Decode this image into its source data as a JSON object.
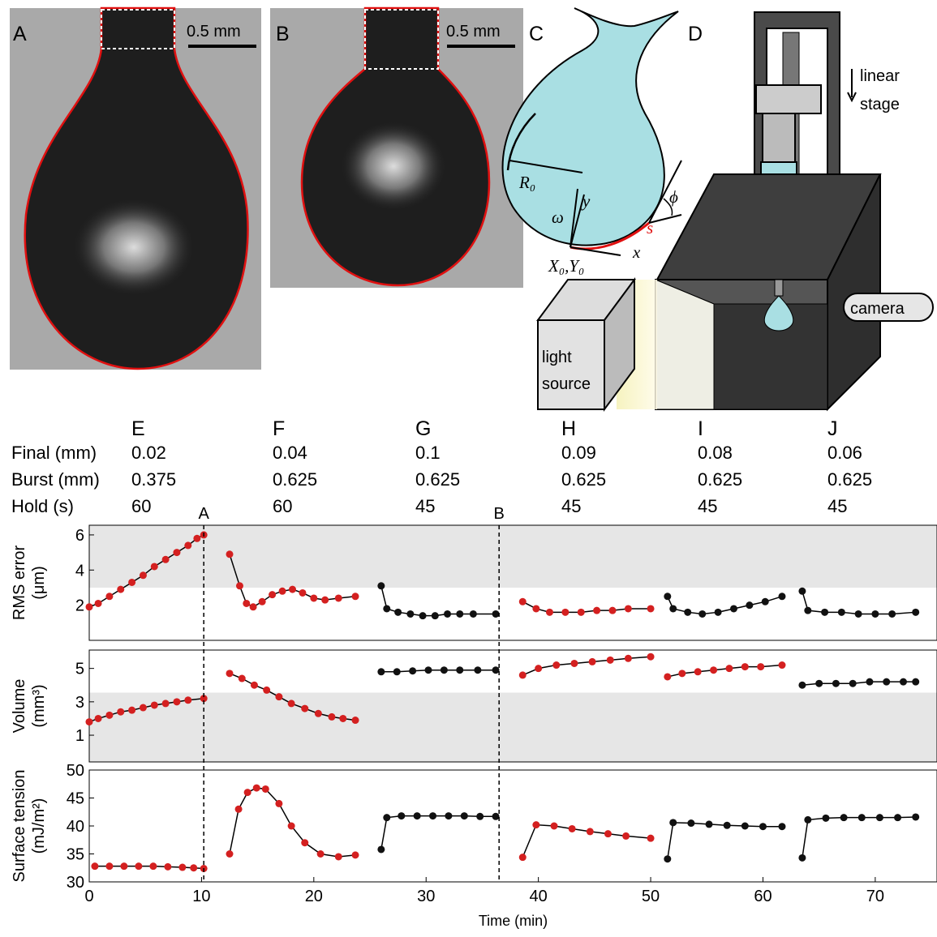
{
  "panels": {
    "labels": [
      "A",
      "B",
      "C",
      "D"
    ],
    "scale_bar": "0.5 mm"
  },
  "diagram": {
    "radius": "R₀",
    "angle": "ω",
    "y_axis": "y",
    "x_axis": "x",
    "origin": "X₀,Y₀",
    "arc": "s",
    "tangent": "ϕ",
    "stage": [
      "linear",
      "stage"
    ],
    "camera": "camera",
    "light": [
      "light",
      "source"
    ]
  },
  "table": {
    "columns": [
      "E",
      "F",
      "G",
      "H",
      "I",
      "J"
    ],
    "rows": [
      {
        "label": "Final (mm)",
        "values": [
          0.02,
          0.04,
          0.1,
          0.09,
          0.08,
          0.06
        ]
      },
      {
        "label": "Burst (mm)",
        "values": [
          0.375,
          0.625,
          0.625,
          0.625,
          0.625,
          0.625
        ]
      },
      {
        "label": "Hold (s)",
        "values": [
          60,
          60,
          45,
          45,
          45,
          45
        ]
      }
    ]
  },
  "chart_data": [
    {
      "type": "line",
      "ylabel": [
        "RMS error",
        "(μm)"
      ],
      "xlim": [
        0,
        75.5
      ],
      "ylim": [
        0,
        6.55
      ],
      "yticks": [
        2,
        4,
        6
      ],
      "shade": [
        3,
        6.55
      ],
      "vlines": [
        {
          "value": 10.2,
          "label": "A"
        },
        {
          "value": 36.5,
          "label": "B"
        }
      ],
      "series": [
        {
          "color": "#d42020",
          "x": [
            0,
            0.8,
            1.8,
            2.8,
            3.8,
            4.8,
            5.8,
            6.8,
            7.8,
            8.8,
            9.6,
            10.2
          ],
          "values": [
            1.9,
            2.1,
            2.5,
            2.9,
            3.3,
            3.7,
            4.2,
            4.6,
            5.0,
            5.4,
            5.8,
            6.0
          ]
        },
        {
          "color": "#d42020",
          "x": [
            12.5,
            13.4,
            14.0,
            14.6,
            15.4,
            16.3,
            17.2,
            18.1,
            19.0,
            20.0,
            21.0,
            22.2,
            23.7
          ],
          "values": [
            4.9,
            3.1,
            2.1,
            1.9,
            2.2,
            2.6,
            2.8,
            2.9,
            2.7,
            2.4,
            2.3,
            2.4,
            2.5
          ]
        },
        {
          "color": "#111111",
          "x": [
            26.0,
            26.5,
            27.5,
            28.6,
            29.7,
            30.8,
            31.9,
            33.0,
            34.2,
            36.2
          ],
          "values": [
            3.1,
            1.8,
            1.6,
            1.5,
            1.4,
            1.4,
            1.5,
            1.5,
            1.5,
            1.5
          ]
        },
        {
          "color": "#d42020",
          "x": [
            38.6,
            39.8,
            41.0,
            42.4,
            43.8,
            45.2,
            46.6,
            48.0,
            50.0
          ],
          "values": [
            2.2,
            1.8,
            1.6,
            1.6,
            1.6,
            1.7,
            1.7,
            1.8,
            1.8
          ]
        },
        {
          "color": "#111111",
          "x": [
            51.5,
            52.0,
            53.3,
            54.6,
            56.0,
            57.4,
            58.8,
            60.2,
            61.7
          ],
          "values": [
            2.5,
            1.8,
            1.6,
            1.5,
            1.6,
            1.8,
            2.0,
            2.2,
            2.5
          ]
        },
        {
          "color": "#111111",
          "x": [
            63.5,
            64.0,
            65.5,
            67.0,
            68.5,
            70.0,
            71.5,
            73.6
          ],
          "values": [
            2.8,
            1.7,
            1.6,
            1.6,
            1.5,
            1.5,
            1.5,
            1.6
          ]
        }
      ]
    },
    {
      "type": "line",
      "ylabel": [
        "Volume",
        "(mm³)"
      ],
      "xlim": [
        0,
        75.5
      ],
      "ylim": [
        -0.6,
        6.1
      ],
      "yticks": [
        1,
        3,
        5
      ],
      "shade": [
        -0.6,
        3.55
      ],
      "series": [
        {
          "color": "#d42020",
          "x": [
            0,
            0.8,
            1.8,
            2.8,
            3.8,
            4.8,
            5.8,
            6.8,
            7.8,
            8.8,
            10.2
          ],
          "values": [
            1.8,
            2.0,
            2.2,
            2.4,
            2.5,
            2.65,
            2.8,
            2.9,
            3.0,
            3.1,
            3.2
          ]
        },
        {
          "color": "#d42020",
          "x": [
            12.5,
            13.6,
            14.7,
            15.8,
            16.9,
            18.0,
            19.2,
            20.4,
            21.6,
            22.6,
            23.7
          ],
          "values": [
            4.7,
            4.4,
            4.0,
            3.7,
            3.3,
            2.9,
            2.6,
            2.3,
            2.1,
            2.0,
            1.9
          ]
        },
        {
          "color": "#111111",
          "x": [
            26.0,
            27.4,
            28.8,
            30.2,
            31.6,
            33.0,
            34.6,
            36.2
          ],
          "values": [
            4.8,
            4.8,
            4.85,
            4.9,
            4.9,
            4.9,
            4.9,
            4.9
          ]
        },
        {
          "color": "#d42020",
          "x": [
            38.6,
            40.0,
            41.6,
            43.2,
            44.8,
            46.4,
            48.0,
            50.0
          ],
          "values": [
            4.6,
            5.0,
            5.2,
            5.3,
            5.4,
            5.5,
            5.6,
            5.7
          ]
        },
        {
          "color": "#d42020",
          "x": [
            51.5,
            52.8,
            54.2,
            55.6,
            57.0,
            58.4,
            59.8,
            61.7
          ],
          "values": [
            4.5,
            4.7,
            4.8,
            4.9,
            5.0,
            5.1,
            5.1,
            5.2
          ]
        },
        {
          "color": "#111111",
          "x": [
            63.5,
            65.0,
            66.5,
            68.0,
            69.5,
            71.0,
            72.5,
            73.6
          ],
          "values": [
            4.0,
            4.1,
            4.1,
            4.1,
            4.2,
            4.2,
            4.2,
            4.2
          ]
        }
      ]
    },
    {
      "type": "line",
      "ylabel": [
        "Surface tension",
        "(mJ/m²)"
      ],
      "xlabel": "Time (min)",
      "xlim": [
        0,
        75.5
      ],
      "ylim": [
        30,
        50
      ],
      "yticks": [
        30,
        35,
        40,
        45,
        50
      ],
      "xticks": [
        0,
        10,
        20,
        30,
        40,
        50,
        60,
        70
      ],
      "series": [
        {
          "color": "#d42020",
          "x": [
            0.5,
            1.8,
            3.1,
            4.4,
            5.7,
            7.0,
            8.3,
            9.3,
            10.2
          ],
          "values": [
            32.8,
            32.8,
            32.8,
            32.8,
            32.8,
            32.7,
            32.6,
            32.5,
            32.4
          ]
        },
        {
          "color": "#d42020",
          "x": [
            12.5,
            13.3,
            14.1,
            14.9,
            15.7,
            16.9,
            18.0,
            19.2,
            20.6,
            22.2,
            23.7
          ],
          "values": [
            35,
            43,
            46,
            46.8,
            46.6,
            44,
            40,
            37,
            35,
            34.5,
            34.8
          ]
        },
        {
          "color": "#111111",
          "x": [
            26.0,
            26.5,
            27.8,
            29.2,
            30.6,
            32.0,
            33.4,
            34.8,
            36.2
          ],
          "values": [
            35.8,
            41.5,
            41.8,
            41.8,
            41.8,
            41.8,
            41.8,
            41.7,
            41.7
          ]
        },
        {
          "color": "#d42020",
          "x": [
            38.6,
            39.8,
            41.4,
            43.0,
            44.6,
            46.2,
            47.8,
            50.0
          ],
          "values": [
            34.4,
            40.2,
            40.0,
            39.5,
            39.0,
            38.6,
            38.2,
            37.8
          ]
        },
        {
          "color": "#111111",
          "x": [
            51.5,
            52.0,
            53.6,
            55.2,
            56.8,
            58.4,
            60.0,
            61.7
          ],
          "values": [
            34.1,
            40.6,
            40.5,
            40.3,
            40.1,
            40.0,
            39.9,
            39.9
          ]
        },
        {
          "color": "#111111",
          "x": [
            63.5,
            64.0,
            65.6,
            67.2,
            68.8,
            70.4,
            72.0,
            73.6
          ],
          "values": [
            34.3,
            41.1,
            41.4,
            41.5,
            41.5,
            41.5,
            41.5,
            41.6
          ]
        }
      ]
    }
  ]
}
